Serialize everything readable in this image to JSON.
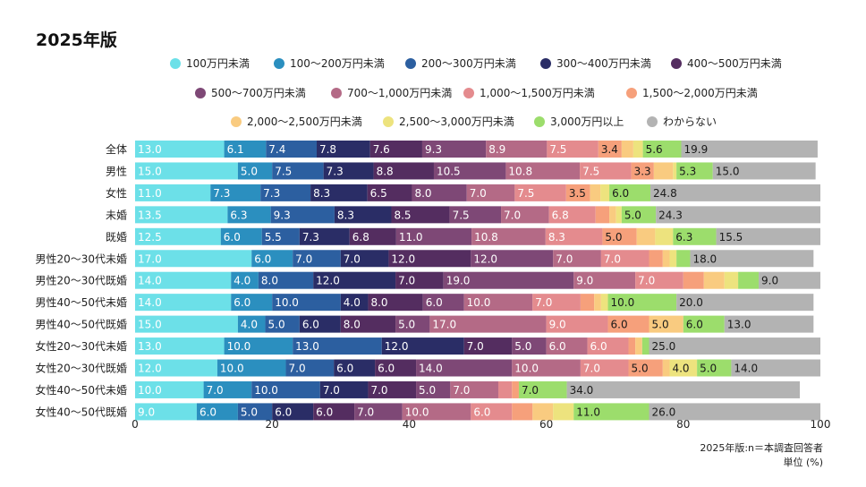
{
  "title": "2025年版",
  "notes": {
    "source": "2025年版:n＝本調査回答者",
    "unit": "単位 (%)"
  },
  "legend": [
    {
      "label": "100万円未満",
      "color": "#6ce0e8"
    },
    {
      "label": "100〜200万円未満",
      "color": "#2b8fbf"
    },
    {
      "label": "200〜300万円未満",
      "color": "#2c5fa0"
    },
    {
      "label": "300〜400万円未満",
      "color": "#2a2d66"
    },
    {
      "label": "400〜500万円未満",
      "color": "#542d60"
    },
    {
      "label": "500〜700万円未満",
      "color": "#7e4876"
    },
    {
      "label": "700〜1,000万円未満",
      "color": "#b46a86"
    },
    {
      "label": "1,000〜1,500万円未満",
      "color": "#e48b8e"
    },
    {
      "label": "1,500〜2,000万円未満",
      "color": "#f6a07b"
    },
    {
      "label": "2,000〜2,500万円未満",
      "color": "#f9cb80"
    },
    {
      "label": "2,500〜3,000万円未満",
      "color": "#ede37e"
    },
    {
      "label": "3,000万円以上",
      "color": "#9cdd6c"
    },
    {
      "label": "わからない",
      "color": "#b3b3b3"
    }
  ],
  "chart_data": {
    "type": "bar",
    "orientation": "horizontal-stacked",
    "xlim": [
      0,
      100
    ],
    "xticks": [
      0,
      20,
      40,
      60,
      80,
      100
    ],
    "categories": [
      "全体",
      "男性",
      "女性",
      "未婚",
      "既婚",
      "男性20〜30代未婚",
      "男性20〜30代既婚",
      "男性40〜50代未婚",
      "男性40〜50代既婚",
      "女性20〜30代未婚",
      "女性20〜30代既婚",
      "女性40〜50代未婚",
      "女性40〜50代既婚"
    ],
    "series": [
      {
        "name": "100万円未満",
        "values": [
          13.0,
          15.0,
          11.0,
          13.5,
          12.5,
          17.0,
          14.0,
          14.0,
          15.0,
          13.0,
          12.0,
          10.0,
          9.0
        ]
      },
      {
        "name": "100〜200万円未満",
        "values": [
          6.1,
          5.0,
          7.3,
          6.3,
          6.0,
          6.0,
          4.0,
          6.0,
          4.0,
          10.0,
          10.0,
          7.0,
          6.0
        ]
      },
      {
        "name": "200〜300万円未満",
        "values": [
          7.4,
          7.5,
          7.3,
          9.3,
          5.5,
          7.0,
          8.0,
          10.0,
          5.0,
          13.0,
          7.0,
          10.0,
          5.0
        ]
      },
      {
        "name": "300〜400万円未満",
        "values": [
          7.8,
          7.3,
          8.3,
          8.3,
          7.3,
          7.0,
          12.0,
          4.0,
          6.0,
          12.0,
          6.0,
          7.0,
          6.0
        ]
      },
      {
        "name": "400〜500万円未満",
        "values": [
          7.6,
          8.8,
          6.5,
          8.5,
          6.8,
          12.0,
          7.0,
          8.0,
          8.0,
          7.0,
          6.0,
          7.0,
          6.0
        ]
      },
      {
        "name": "500〜700万円未満",
        "values": [
          9.3,
          10.5,
          8.0,
          7.5,
          11.0,
          12.0,
          19.0,
          6.0,
          5.0,
          5.0,
          14.0,
          5.0,
          7.0
        ]
      },
      {
        "name": "700〜1,000万円未満",
        "values": [
          8.9,
          10.8,
          7.0,
          7.0,
          10.8,
          7.0,
          9.0,
          10.0,
          17.0,
          6.0,
          10.0,
          7.0,
          10.0
        ]
      },
      {
        "name": "1,000〜1,500万円未満",
        "values": [
          7.5,
          7.5,
          7.5,
          6.8,
          8.3,
          7.0,
          7.0,
          7.0,
          9.0,
          6.0,
          7.0,
          2.0,
          6.0
        ]
      },
      {
        "name": "1,500〜2,000万円未満",
        "values": [
          3.4,
          3.3,
          3.5,
          2.0,
          5.0,
          2.0,
          3.0,
          2.0,
          6.0,
          1.0,
          5.0,
          1.0,
          3.0
        ]
      },
      {
        "name": "2,000〜2,500万円未満",
        "values": [
          1.7,
          2.8,
          1.5,
          1.0,
          2.7,
          1.0,
          3.0,
          1.0,
          5.0,
          1.0,
          1.0,
          0.0,
          3.0
        ]
      },
      {
        "name": "2,500〜3,000万円未満",
        "values": [
          1.4,
          0.5,
          1.3,
          0.8,
          2.6,
          1.0,
          2.0,
          1.0,
          0.0,
          0.0,
          4.0,
          0.0,
          3.0
        ]
      },
      {
        "name": "3,000万円以上",
        "values": [
          5.6,
          5.3,
          6.0,
          5.0,
          6.3,
          2.0,
          3.0,
          10.0,
          6.0,
          1.0,
          5.0,
          7.0,
          11.0
        ]
      },
      {
        "name": "わからない",
        "values": [
          19.9,
          15.0,
          24.8,
          24.3,
          15.5,
          18.0,
          9.0,
          20.0,
          13.0,
          25.0,
          14.0,
          34.0,
          26.0
        ]
      }
    ],
    "labels": [
      [
        "13.0",
        "6.1",
        "7.4",
        "7.8",
        "7.6",
        "9.3",
        "8.9",
        "7.5",
        "3.4",
        "",
        "",
        "5.6",
        "19.9"
      ],
      [
        "15.0",
        "5.0",
        "7.5",
        "7.3",
        "8.8",
        "10.5",
        "10.8",
        "7.5",
        "3.3",
        "",
        "",
        "5.3",
        "15.0"
      ],
      [
        "11.0",
        "7.3",
        "7.3",
        "8.3",
        "6.5",
        "8.0",
        "7.0",
        "7.5",
        "3.5",
        "",
        "",
        "6.0",
        "24.8"
      ],
      [
        "13.5",
        "6.3",
        "9.3",
        "8.3",
        "8.5",
        "7.5",
        "7.0",
        "6.8",
        "",
        "",
        "",
        "5.0",
        "24.3"
      ],
      [
        "12.5",
        "6.0",
        "5.5",
        "7.3",
        "6.8",
        "11.0",
        "10.8",
        "8.3",
        "5.0",
        "",
        "",
        "6.3",
        "15.5"
      ],
      [
        "17.0",
        "6.0",
        "7.0",
        "7.0",
        "12.0",
        "12.0",
        "7.0",
        "7.0",
        "",
        "",
        "",
        "",
        "18.0"
      ],
      [
        "14.0",
        "4.0",
        "8.0",
        "12.0",
        "7.0",
        "19.0",
        "9.0",
        "7.0",
        "",
        "",
        "",
        "",
        "9.0"
      ],
      [
        "14.0",
        "6.0",
        "10.0",
        "4.0",
        "8.0",
        "6.0",
        "10.0",
        "7.0",
        "",
        "",
        "",
        "10.0",
        "20.0"
      ],
      [
        "15.0",
        "4.0",
        "5.0",
        "6.0",
        "8.0",
        "5.0",
        "17.0",
        "9.0",
        "6.0",
        "5.0",
        "",
        "6.0",
        "13.0"
      ],
      [
        "13.0",
        "10.0",
        "13.0",
        "12.0",
        "7.0",
        "5.0",
        "6.0",
        "6.0",
        "",
        "",
        "",
        "",
        "25.0"
      ],
      [
        "12.0",
        "10.0",
        "7.0",
        "6.0",
        "6.0",
        "14.0",
        "10.0",
        "7.0",
        "5.0",
        "",
        "4.0",
        "5.0",
        "14.0"
      ],
      [
        "10.0",
        "7.0",
        "10.0",
        "7.0",
        "7.0",
        "5.0",
        "7.0",
        "",
        "",
        "",
        "",
        "7.0",
        "34.0"
      ],
      [
        "9.0",
        "6.0",
        "5.0",
        "6.0",
        "6.0",
        "7.0",
        "10.0",
        "6.0",
        "",
        "",
        "",
        "11.0",
        "26.0"
      ]
    ]
  }
}
